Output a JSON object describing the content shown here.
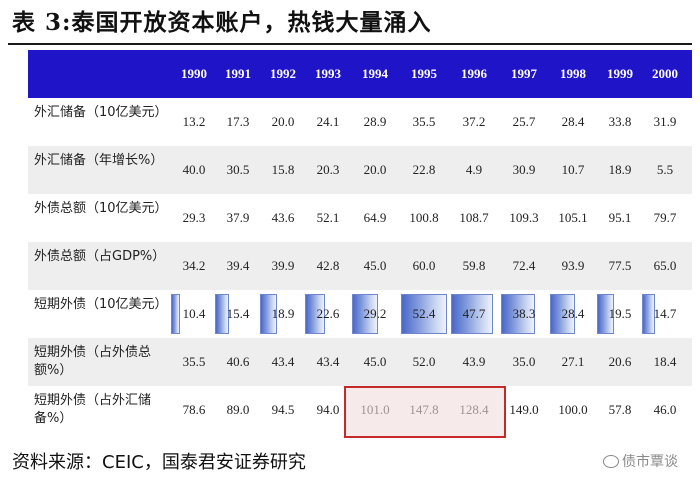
{
  "title": "表 3:泰国开放资本账户，热钱大量涌入",
  "table": {
    "years": [
      "1990",
      "1991",
      "1992",
      "1993",
      "1994",
      "1995",
      "1996",
      "1997",
      "1998",
      "1999",
      "2000"
    ],
    "rows": [
      {
        "label": "外汇储备（10亿美元）",
        "values": [
          "13.2",
          "17.3",
          "20.0",
          "24.1",
          "28.9",
          "35.5",
          "37.2",
          "25.7",
          "28.4",
          "33.8",
          "31.9"
        ]
      },
      {
        "label": "外汇储备（年增长%）",
        "values": [
          "40.0",
          "30.5",
          "15.8",
          "20.3",
          "20.0",
          "22.8",
          "4.9",
          "30.9",
          "10.7",
          "18.9",
          "5.5"
        ]
      },
      {
        "label": "外债总额（10亿美元）",
        "values": [
          "29.3",
          "37.9",
          "43.6",
          "52.1",
          "64.9",
          "100.8",
          "108.7",
          "109.3",
          "105.1",
          "95.1",
          "79.7"
        ]
      },
      {
        "label": "外债总额（占GDP%）",
        "values": [
          "34.2",
          "39.4",
          "39.9",
          "42.8",
          "45.0",
          "60.0",
          "59.8",
          "72.4",
          "93.9",
          "77.5",
          "65.0"
        ]
      },
      {
        "label": "短期外债（10亿美元）",
        "values": [
          "10.4",
          "15.4",
          "18.9",
          "22.6",
          "29.2",
          "52.4",
          "47.7",
          "38.3",
          "28.4",
          "19.5",
          "14.7"
        ]
      },
      {
        "label": "短期外债（占外债总额%）",
        "values": [
          "35.5",
          "40.6",
          "43.4",
          "43.4",
          "45.0",
          "52.0",
          "43.9",
          "35.0",
          "27.1",
          "20.6",
          "18.4"
        ]
      },
      {
        "label": "短期外债（占外汇储备%）",
        "values": [
          "78.6",
          "89.0",
          "94.5",
          "94.0",
          "101.0",
          "147.8",
          "128.4",
          "149.0",
          "100.0",
          "57.8",
          "46.0"
        ]
      }
    ]
  },
  "source": "资料来源：CEIC，国泰君安证券研究",
  "watermark": "债市覃谈",
  "colors": {
    "header_bg": "#1f14c8",
    "highlight_border": "#c42a2a"
  }
}
